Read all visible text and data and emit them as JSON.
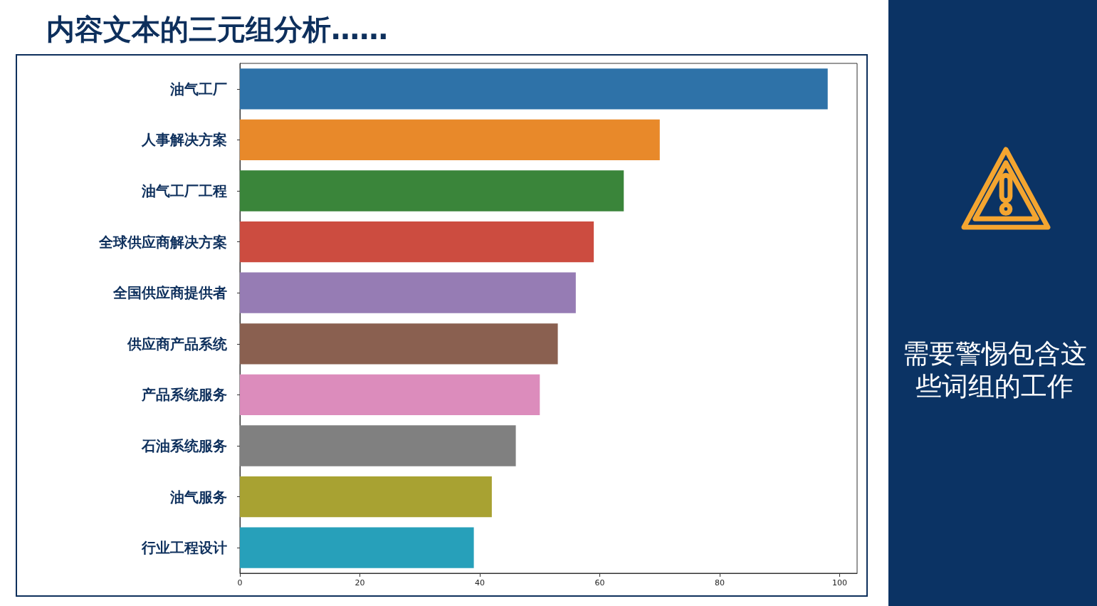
{
  "chart_data": {
    "type": "bar",
    "orientation": "horizontal",
    "title": "内容文本的三元组分析……",
    "categories": [
      "油气工厂",
      "人事解决方案",
      "油气工厂工程",
      "全球供应商解决方案",
      "全国供应商提供者",
      "供应商产品系统",
      "产品系统服务",
      "石油系统服务",
      "油气服务",
      "行业工程设计"
    ],
    "values": [
      98,
      70,
      64,
      59,
      56,
      53,
      50,
      46,
      42,
      39
    ],
    "colors": [
      "#2e72a8",
      "#e8892a",
      "#3a853a",
      "#cc4c40",
      "#967cb4",
      "#8a6050",
      "#dc8cbc",
      "#808080",
      "#a8a232",
      "#27a0ba"
    ],
    "xlim": [
      0,
      102.9
    ],
    "xticks": [
      0,
      20,
      40,
      60,
      80,
      100
    ],
    "grid": false,
    "annotations": [
      "需要警惕包含这些词组的工作"
    ]
  }
}
